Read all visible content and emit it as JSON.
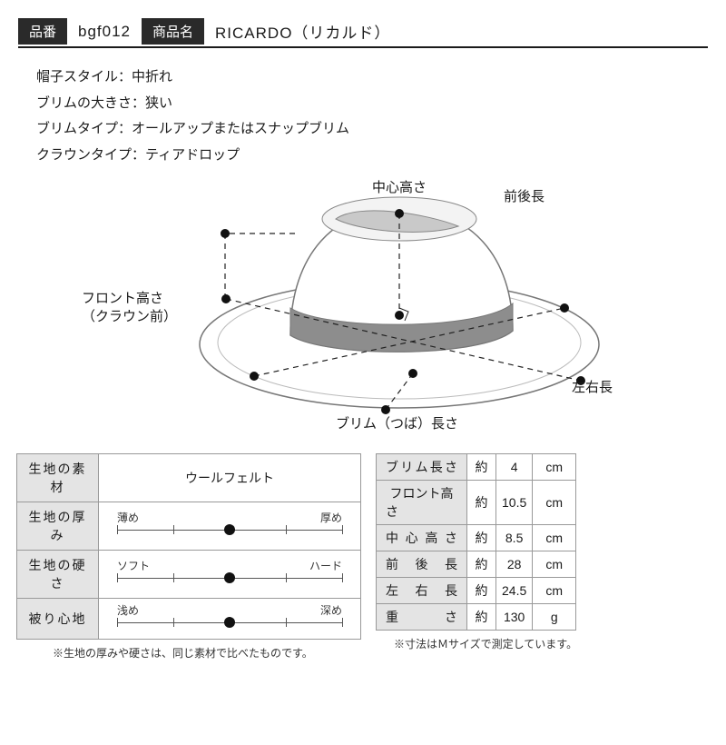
{
  "header": {
    "code_label": "品番",
    "code_value": "bgf012",
    "name_label": "商品名",
    "name_value": "RICARDO（リカルド）"
  },
  "specs": [
    "帽子スタイル：中折れ",
    "ブリムの大きさ：狭い",
    "ブリムタイプ：オールアップまたはスナップブリム",
    "クラウンタイプ：ティアドロップ"
  ],
  "diagram_labels": {
    "center_height": "中心高さ",
    "front_back": "前後長",
    "front_height_1": "フロント高さ",
    "front_height_2": "（クラウン前）",
    "left_right": "左右長",
    "brim": "ブリム（つば）長さ"
  },
  "left_table": {
    "material_label": "生地の素材",
    "material_value": "ウールフェルト",
    "thickness_label": "生地の厚み",
    "hardness_label": "生地の硬さ",
    "fit_label": "被り心地",
    "sliders": {
      "thickness": {
        "left": "薄め",
        "right": "厚め",
        "pos_pct": 50
      },
      "hardness": {
        "left": "ソフト",
        "right": "ハード",
        "pos_pct": 50
      },
      "fit": {
        "left": "浅め",
        "right": "深め",
        "pos_pct": 50
      }
    },
    "note": "※生地の厚みや硬さは、同じ素材で比べたものです。"
  },
  "right_table": {
    "approx": "約",
    "rows": [
      {
        "label": "ブリム長さ",
        "value": "4",
        "unit": "cm"
      },
      {
        "label": "フロント高さ",
        "value": "10.5",
        "unit": "cm"
      },
      {
        "label": "中心高さ",
        "value": "8.5",
        "unit": "cm"
      },
      {
        "label": "前後長",
        "value": "28",
        "unit": "cm"
      },
      {
        "label": "左右長",
        "value": "24.5",
        "unit": "cm"
      },
      {
        "label": "重さ",
        "value": "130",
        "unit": "g"
      }
    ],
    "note": "※寸法はＭサイズで測定しています。"
  },
  "colors": {
    "band": "#888888",
    "hat_stroke": "#555555",
    "hat_fill": "#ffffff",
    "dashed": "#222222"
  }
}
